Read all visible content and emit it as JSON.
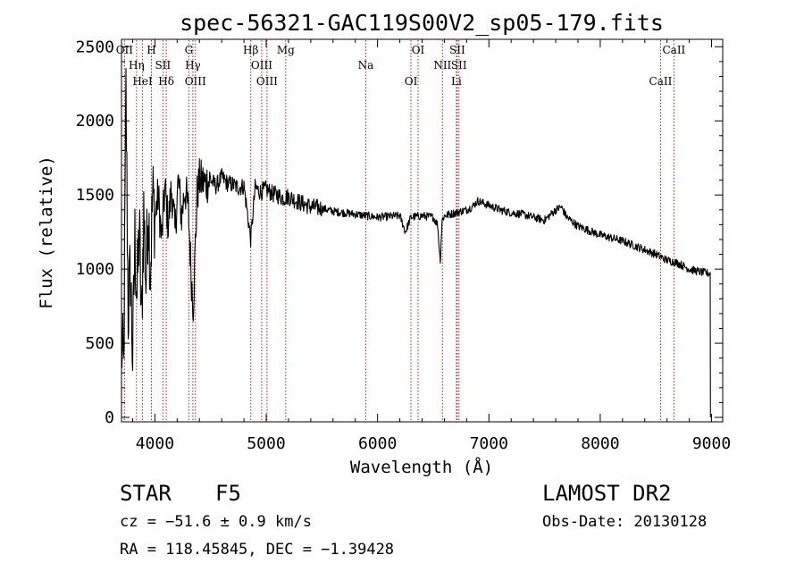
{
  "chart_data": {
    "type": "line",
    "title": "spec-56321-GAC119S00V2_sp05-179.fits",
    "xlabel": "Wavelength (Å)",
    "ylabel": "Flux (relative)",
    "xlim": [
      3700,
      9100
    ],
    "ylim": [
      -30,
      2550
    ],
    "xticks": [
      4000,
      5000,
      6000,
      7000,
      8000,
      9000
    ],
    "yticks": [
      0,
      500,
      1000,
      1500,
      2000,
      2500
    ],
    "grid": false,
    "series": [
      {
        "x": [
          3700,
          3720,
          3740,
          3760,
          3780,
          3800,
          3820,
          3840,
          3860,
          3880,
          3900,
          3920,
          3940,
          3960,
          3980,
          4000,
          4030,
          4060,
          4090,
          4120,
          4150,
          4180,
          4210,
          4240,
          4270,
          4300,
          4330,
          4345,
          4360,
          4380,
          4400,
          4450,
          4500,
          4550,
          4600,
          4650,
          4700,
          4750,
          4800,
          4861,
          4900,
          4950,
          5000,
          5050,
          5100,
          5150,
          5200,
          5300,
          5400,
          5500,
          5600,
          5700,
          5800,
          5900,
          6000,
          6100,
          6200,
          6250,
          6300,
          6400,
          6500,
          6540,
          6563,
          6580,
          6600,
          6700,
          6800,
          6850,
          6900,
          7000,
          7100,
          7200,
          7300,
          7400,
          7500,
          7600,
          7650,
          7700,
          7800,
          7900,
          8000,
          8100,
          8200,
          8300,
          8400,
          8500,
          8600,
          8700,
          8800,
          8900,
          8990
        ],
        "y": [
          500,
          300,
          2200,
          700,
          1000,
          400,
          1200,
          800,
          1300,
          600,
          1400,
          900,
          1450,
          1000,
          1500,
          1350,
          1500,
          1200,
          1550,
          1300,
          1550,
          1250,
          1600,
          1350,
          1550,
          1400,
          900,
          750,
          1100,
          1500,
          1600,
          1580,
          1600,
          1560,
          1620,
          1580,
          1570,
          1550,
          1560,
          1200,
          1550,
          1520,
          1540,
          1510,
          1500,
          1480,
          1490,
          1450,
          1420,
          1410,
          1390,
          1380,
          1370,
          1360,
          1350,
          1355,
          1360,
          1250,
          1350,
          1360,
          1350,
          1300,
          1050,
          1330,
          1360,
          1380,
          1400,
          1420,
          1460,
          1430,
          1400,
          1380,
          1370,
          1350,
          1330,
          1400,
          1420,
          1350,
          1290,
          1260,
          1230,
          1210,
          1190,
          1160,
          1130,
          1100,
          1060,
          1040,
          1000,
          980,
          970
        ]
      }
    ],
    "lines": [
      {
        "name": "OII",
        "x": 3727
      },
      {
        "name": "Hη",
        "x": 3835
      },
      {
        "name": "HeI",
        "x": 3889
      },
      {
        "name": "H",
        "x": 3969
      },
      {
        "name": "SII",
        "x": 4072
      },
      {
        "name": "Hδ",
        "x": 4102
      },
      {
        "name": "G",
        "x": 4305
      },
      {
        "name": "Hγ",
        "x": 4341
      },
      {
        "name": "OIII",
        "x": 4364
      },
      {
        "name": "Hβ",
        "x": 4861
      },
      {
        "name": "OIII",
        "x": 4959
      },
      {
        "name": "OIII",
        "x": 5007
      },
      {
        "name": "Mg",
        "x": 5175
      },
      {
        "name": "Na",
        "x": 5894
      },
      {
        "name": "OI",
        "x": 6300
      },
      {
        "name": "OI",
        "x": 6364
      },
      {
        "name": "NII",
        "x": 6583
      },
      {
        "name": "Li",
        "x": 6708
      },
      {
        "name": "SII",
        "x": 6716
      },
      {
        "name": "SII",
        "x": 6731
      },
      {
        "name": "CaII",
        "x": 8542
      },
      {
        "name": "CaII",
        "x": 8662
      }
    ]
  },
  "info": {
    "object_type": "STAR",
    "subclass": "F5",
    "cz": "cz = −51.6 ± 0.9 km/s",
    "coords": "RA = 118.45845, DEC =  −1.39428",
    "survey": "LAMOST DR2",
    "obs_date": "Obs-Date: 20130128"
  },
  "colors": {
    "axis": "#000000",
    "spectrum": "#000000",
    "line_markers": "#b22222"
  }
}
